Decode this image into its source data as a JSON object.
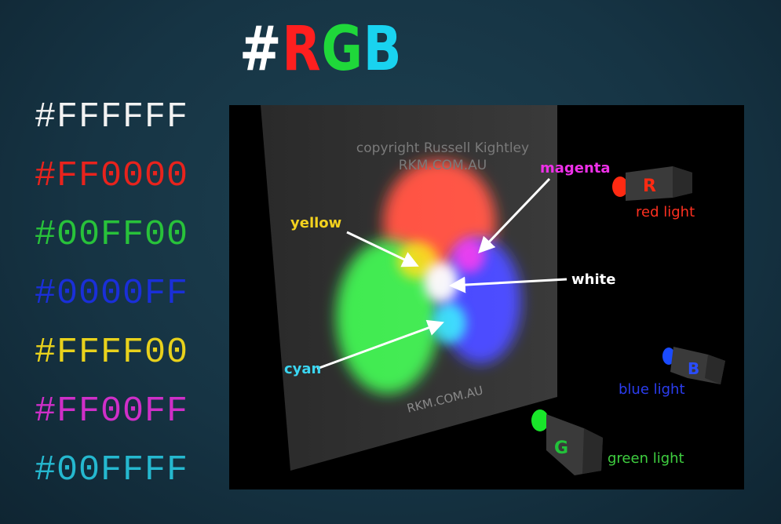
{
  "title": {
    "hash": "#",
    "r": "R",
    "g": "G",
    "b": "B"
  },
  "colors": {
    "white": "#FFFFFF",
    "red": "#FF0000",
    "green": "#00FF00",
    "blue": "#0000FF",
    "yellow": "#FFFF00",
    "magenta": "#FF00FF",
    "cyan": "#00FFFF"
  },
  "hex_codes": [
    {
      "code": "#FFFFFF",
      "color": "#f2f2f2"
    },
    {
      "code": "#FF0000",
      "color": "#e8231d"
    },
    {
      "code": "#00FF00",
      "color": "#28c23a"
    },
    {
      "code": "#0000FF",
      "color": "#1a2fd8"
    },
    {
      "code": "#FFFF00",
      "color": "#e8d11c"
    },
    {
      "code": "#FF00FF",
      "color": "#cf2fc8"
    },
    {
      "code": "#00FFFF",
      "color": "#25b8cf"
    }
  ],
  "illustration": {
    "copyright_line1": "copyright Russell Kightley",
    "copyright_line2": "RKM.COM.AU",
    "watermark": "RKM.COM.AU",
    "labels": {
      "yellow": "yellow",
      "magenta": "magenta",
      "white": "white",
      "cyan": "cyan"
    },
    "lights": {
      "red": {
        "letter": "R",
        "caption": "red light"
      },
      "blue": {
        "letter": "B",
        "caption": "blue light"
      },
      "green": {
        "letter": "G",
        "caption": "green light"
      }
    }
  }
}
